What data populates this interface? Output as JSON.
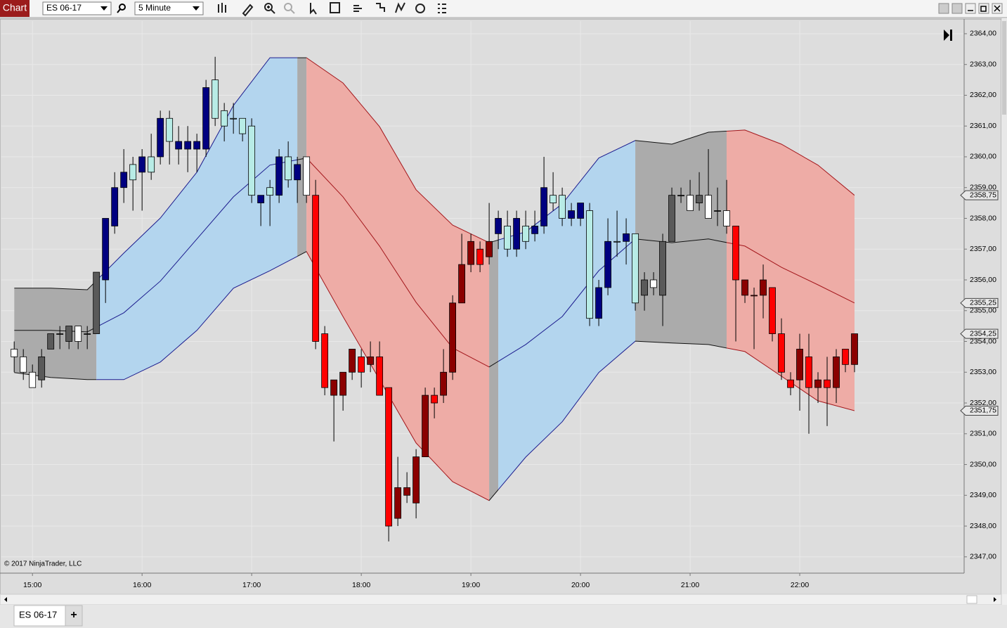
{
  "toolbar": {
    "chart_button": "Chart",
    "instrument": "ES 06-17",
    "interval": "5 Minute"
  },
  "chart_data": {
    "type": "candlestick",
    "x": [
      "14:50",
      "14:55",
      "15:00",
      "15:05",
      "15:10",
      "15:15",
      "15:20",
      "15:25",
      "15:30",
      "15:35",
      "15:40",
      "15:45",
      "15:50",
      "15:55",
      "16:00",
      "16:05",
      "16:10",
      "16:15",
      "16:20",
      "16:25",
      "16:30",
      "16:35",
      "16:40",
      "16:45",
      "16:50",
      "16:55",
      "17:00",
      "17:05",
      "17:10",
      "17:15",
      "17:20",
      "17:25",
      "17:30",
      "17:35",
      "17:40",
      "17:45",
      "17:50",
      "17:55",
      "18:00",
      "18:05",
      "18:10",
      "18:15",
      "18:20",
      "18:25",
      "18:30",
      "18:35",
      "18:40",
      "18:45",
      "18:50",
      "18:55",
      "19:00",
      "19:05",
      "19:10",
      "19:15",
      "19:20",
      "19:25",
      "19:30",
      "19:35",
      "19:40",
      "19:45",
      "19:50",
      "19:55",
      "20:00",
      "20:05",
      "20:10",
      "20:15",
      "20:20",
      "20:25",
      "20:30",
      "20:35",
      "20:40",
      "20:45",
      "20:50",
      "20:55",
      "21:00",
      "21:05",
      "21:10",
      "21:15",
      "21:20",
      "21:25",
      "21:30",
      "21:35",
      "21:40",
      "21:45",
      "21:50",
      "21:55",
      "22:00",
      "22:05",
      "22:10",
      "22:15",
      "22:20",
      "22:25",
      "22:30"
    ],
    "open": [
      2353.75,
      2353.5,
      2353,
      2352.75,
      2353.75,
      2354.25,
      2354,
      2354.5,
      2354.25,
      2354.25,
      2356,
      2357.75,
      2359,
      2359.75,
      2359.5,
      2360,
      2360,
      2361.25,
      2360.25,
      2360.25,
      2360.25,
      2360.25,
      2362.5,
      2361.5,
      2361.25,
      2361.25,
      2361,
      2358.5,
      2359,
      2358.75,
      2360,
      2359.25,
      2360,
      2358.75,
      2354.25,
      2352.25,
      2352.25,
      2353,
      2353.5,
      2353.25,
      2353.5,
      2352.5,
      2348.25,
      2349,
      2348.75,
      2350.25,
      2352.25,
      2352.25,
      2353,
      2355.25,
      2356.5,
      2357,
      2356.75,
      2357.5,
      2357.75,
      2357,
      2357.75,
      2357.5,
      2357.75,
      2358.75,
      2358.75,
      2358,
      2358,
      2358.25,
      2354.75,
      2355.75,
      2357.25,
      2357.25,
      2357.5,
      2355.5,
      2356,
      2355.5,
      2357.25,
      2358.75,
      2358.75,
      2358.5,
      2358.75,
      2358.25,
      2358.25,
      2357.75,
      2355.5,
      2355.5,
      2355.5,
      2355.75,
      2354.25,
      2352.75,
      2352.75,
      2353.5,
      2352.5,
      2352.75,
      2352.5,
      2353.75,
      2353.25
    ],
    "high": [
      2354,
      2353.75,
      2353.25,
      2353.75,
      2354.25,
      2354.5,
      2354.5,
      2354.5,
      2354.5,
      2356.25,
      2358,
      2359.5,
      2360.25,
      2360,
      2360.25,
      2360.75,
      2361.5,
      2361.5,
      2361,
      2361,
      2360.75,
      2362.5,
      2363.25,
      2361.75,
      2361.75,
      2361.25,
      2361.25,
      2358.75,
      2359.25,
      2360.25,
      2360.5,
      2360,
      2360,
      2359.25,
      2354.5,
      2352.75,
      2353,
      2353.75,
      2353.75,
      2354,
      2354,
      2352.5,
      2350.25,
      2349.75,
      2350.5,
      2352.5,
      2352.5,
      2353.75,
      2355.5,
      2357.5,
      2357.5,
      2357.25,
      2358.5,
      2358.25,
      2358.25,
      2358.25,
      2358.25,
      2358.25,
      2360,
      2359.5,
      2359,
      2358.5,
      2358.5,
      2358.5,
      2356,
      2358,
      2358.25,
      2358,
      2357.5,
      2356.25,
      2356.25,
      2357.5,
      2359,
      2359,
      2359.25,
      2359.5,
      2360.25,
      2359,
      2359.25,
      2357.75,
      2356,
      2355.75,
      2356.5,
      2355.75,
      2354.75,
      2353,
      2354.25,
      2354.25,
      2353,
      2353.5,
      2353.75,
      2353.75,
      2354.25
    ],
    "low": [
      2353,
      2352.75,
      2352.5,
      2352.5,
      2353.75,
      2353.75,
      2353.75,
      2353.75,
      2353.75,
      2354.25,
      2355.25,
      2357.5,
      2358.5,
      2358.25,
      2358.25,
      2359.25,
      2359.75,
      2359.75,
      2359.75,
      2359.5,
      2359.5,
      2360,
      2361,
      2360.5,
      2360.75,
      2360.5,
      2358.5,
      2357.75,
      2357.75,
      2358.5,
      2359,
      2358.5,
      2358.5,
      2353.75,
      2352.25,
      2350.75,
      2351.75,
      2352.75,
      2352.5,
      2353,
      2352.25,
      2347.5,
      2348,
      2348.75,
      2348.25,
      2350.25,
      2351.5,
      2352,
      2352.75,
      2355.25,
      2356.25,
      2356.25,
      2356.5,
      2357,
      2356.75,
      2356.75,
      2357,
      2357.25,
      2357.5,
      2358.25,
      2357.75,
      2357.75,
      2357.75,
      2354.5,
      2354.5,
      2355.5,
      2356.75,
      2356.5,
      2355,
      2355,
      2355.5,
      2354.5,
      2357.25,
      2358.5,
      2358.25,
      2358.25,
      2358,
      2357.75,
      2357.5,
      2354,
      2355.25,
      2353.75,
      2354.75,
      2354,
      2352.75,
      2352.25,
      2351.75,
      2351,
      2352,
      2351.25,
      2352,
      2353,
      2353
    ],
    "close": [
      2353.5,
      2353,
      2352.5,
      2353.5,
      2354.25,
      2354.25,
      2354.5,
      2354,
      2354.25,
      2356.25,
      2358,
      2359,
      2359.5,
      2359.25,
      2360,
      2359.5,
      2361.25,
      2360.5,
      2360.5,
      2360.5,
      2360.5,
      2362.25,
      2361.25,
      2361,
      2361.25,
      2360.75,
      2358.75,
      2358.75,
      2358.75,
      2360,
      2359.25,
      2359.75,
      2358.75,
      2354,
      2352.5,
      2352.75,
      2353,
      2353.75,
      2353,
      2353.5,
      2352.25,
      2348,
      2349.25,
      2349.25,
      2350.25,
      2352.25,
      2352,
      2353,
      2355.25,
      2356.5,
      2357.25,
      2356.5,
      2357.25,
      2358,
      2357,
      2358,
      2357.25,
      2357.75,
      2359,
      2358.5,
      2358,
      2358.25,
      2358.5,
      2354.75,
      2355.75,
      2357.25,
      2357.25,
      2357.5,
      2355.25,
      2356,
      2355.75,
      2357.25,
      2358.75,
      2358.75,
      2358.25,
      2358.75,
      2358,
      2358.25,
      2357.75,
      2356,
      2356,
      2355.5,
      2356,
      2354.25,
      2353,
      2352.5,
      2353.75,
      2352.5,
      2352.75,
      2352.5,
      2353.5,
      2353.25,
      2354.25
    ],
    "colors": [
      "#ffffff",
      "#ffffff",
      "#ffffff",
      "#5a5a5a",
      "#5a5a5a",
      "#5a5a5a",
      "#5a5a5a",
      "#ffffff",
      "#5a5a5a",
      "#5a5a5a",
      "#000080",
      "#000080",
      "#000080",
      "#b8ece6",
      "#000080",
      "#b8ece6",
      "#000080",
      "#b8ece6",
      "#000080",
      "#000080",
      "#000080",
      "#000080",
      "#b8ece6",
      "#b8ece6",
      "#b8ece6",
      "#b8ece6",
      "#b8ece6",
      "#000080",
      "#b8ece6",
      "#000080",
      "#b8ece6",
      "#000080",
      "#ffffff",
      "#ff0000",
      "#ff0000",
      "#8b0000",
      "#8b0000",
      "#8b0000",
      "#ff0000",
      "#8b0000",
      "#ff0000",
      "#ff0000",
      "#8b0000",
      "#8b0000",
      "#8b0000",
      "#8b0000",
      "#ff0000",
      "#8b0000",
      "#8b0000",
      "#8b0000",
      "#8b0000",
      "#ff0000",
      "#8b0000",
      "#000080",
      "#b8ece6",
      "#000080",
      "#b8ece6",
      "#000080",
      "#000080",
      "#b8ece6",
      "#b8ece6",
      "#000080",
      "#000080",
      "#b8ece6",
      "#000080",
      "#000080",
      "#b8ece6",
      "#000080",
      "#b8ece6",
      "#5a5a5a",
      "#ffffff",
      "#5a5a5a",
      "#5a5a5a",
      "#5a5a5a",
      "#ffffff",
      "#5a5a5a",
      "#ffffff",
      "#5a5a5a",
      "#ffffff",
      "#ff0000",
      "#8b0000",
      "#ff0000",
      "#8b0000",
      "#ff0000",
      "#ff0000",
      "#ff0000",
      "#8b0000",
      "#ff0000",
      "#8b0000",
      "#ff0000",
      "#8b0000",
      "#ff0000",
      "#8b0000"
    ],
    "bands": {
      "x": [
        "14:50",
        "15:10",
        "15:30",
        "15:50",
        "16:10",
        "16:30",
        "16:50",
        "17:10",
        "17:30",
        "17:50",
        "18:10",
        "18:30",
        "18:50",
        "19:10",
        "19:30",
        "19:50",
        "20:10",
        "20:30",
        "20:50",
        "21:10",
        "21:30",
        "21:50",
        "22:10",
        "22:30"
      ],
      "upper": [
        2355.73,
        2355.73,
        2355.68,
        2356.87,
        2358.01,
        2359.5,
        2361.67,
        2363.22,
        2363.22,
        2362.4,
        2360.98,
        2358.93,
        2357.78,
        2357.21,
        2357.56,
        2358.47,
        2359.96,
        2360.53,
        2360.41,
        2360.8,
        2360.87,
        2360.41,
        2359.73,
        2358.75
      ],
      "middle": [
        2354.36,
        2354.36,
        2354.31,
        2354.93,
        2355.96,
        2357.33,
        2358.7,
        2359.73,
        2359.96,
        2358.7,
        2357.1,
        2355.27,
        2353.79,
        2353.17,
        2353.9,
        2354.81,
        2356.3,
        2357.33,
        2357.21,
        2357.33,
        2357.1,
        2356.41,
        2355.84,
        2355.25
      ],
      "lower": [
        2352.99,
        2352.83,
        2352.76,
        2352.76,
        2353.33,
        2354.36,
        2355.73,
        2356.3,
        2356.92,
        2354.81,
        2352.76,
        2350.7,
        2349.44,
        2348.83,
        2350.24,
        2351.39,
        2352.99,
        2354.01,
        2353.95,
        2353.9,
        2353.67,
        2352.87,
        2352.07,
        2351.75
      ]
    },
    "regimes": [
      {
        "start": "14:50",
        "end": "15:35",
        "fill": "#ababab",
        "line": "#111111"
      },
      {
        "start": "15:35",
        "end": "17:25",
        "fill": "#b3d5ee",
        "line": "#1c1c8e"
      },
      {
        "start": "17:25",
        "end": "17:30",
        "fill": "#ababab",
        "line": "#111111"
      },
      {
        "start": "17:30",
        "end": "19:10",
        "fill": "#eeaca6",
        "line": "#a3161b"
      },
      {
        "start": "19:10",
        "end": "19:15",
        "fill": "#ababab",
        "line": "#111111"
      },
      {
        "start": "19:15",
        "end": "20:30",
        "fill": "#b3d5ee",
        "line": "#1c1c8e"
      },
      {
        "start": "20:30",
        "end": "21:20",
        "fill": "#ababab",
        "line": "#111111"
      },
      {
        "start": "21:20",
        "end": "22:30",
        "fill": "#eeaca6",
        "line": "#a3161b"
      }
    ],
    "xlim": [
      "14:43",
      "23:30"
    ],
    "xticks": [
      "15:00",
      "16:00",
      "17:00",
      "18:00",
      "19:00",
      "20:00",
      "21:00",
      "22:00"
    ],
    "ylim": [
      2346.47,
      2364.41
    ],
    "yticks": [
      {
        "value": 2347,
        "label": "2347,00"
      },
      {
        "value": 2348,
        "label": "2348,00"
      },
      {
        "value": 2349,
        "label": "2349,00"
      },
      {
        "value": 2350,
        "label": "2350,00"
      },
      {
        "value": 2351,
        "label": "2351,00"
      },
      {
        "value": 2352,
        "label": "2352,00"
      },
      {
        "value": 2353,
        "label": "2353,00"
      },
      {
        "value": 2354,
        "label": "2354,00"
      },
      {
        "value": 2355,
        "label": "2355,00"
      },
      {
        "value": 2356,
        "label": "2356,00"
      },
      {
        "value": 2357,
        "label": "2357,00"
      },
      {
        "value": 2358,
        "label": "2358,00"
      },
      {
        "value": 2359,
        "label": "2359,00"
      },
      {
        "value": 2360,
        "label": "2360,00"
      },
      {
        "value": 2361,
        "label": "2361,00"
      },
      {
        "value": 2362,
        "label": "2362,00"
      },
      {
        "value": 2363,
        "label": "2363,00"
      },
      {
        "value": 2364,
        "label": "2364,00"
      }
    ],
    "price_markers": [
      {
        "value": 2358.75,
        "label": "2358,75"
      },
      {
        "value": 2355.25,
        "label": "2355,25"
      },
      {
        "value": 2354.25,
        "label": "2354,25"
      },
      {
        "value": 2351.75,
        "label": "2351,75"
      }
    ],
    "grid": true,
    "copyright": "© 2017 NinjaTrader, LLC"
  },
  "tabs": {
    "active": "ES 06-17",
    "add": "+"
  }
}
